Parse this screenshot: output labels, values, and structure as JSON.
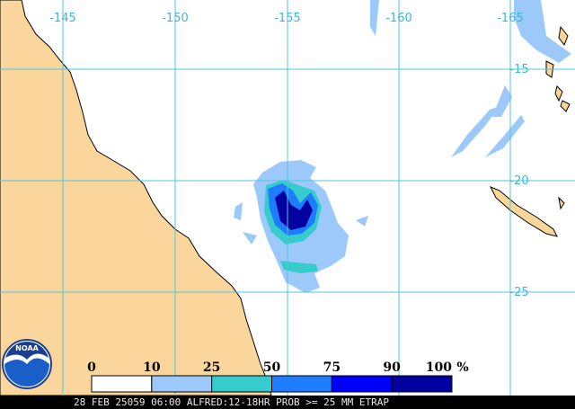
{
  "map": {
    "longitude_labels": [
      "-145",
      "-150",
      "-155",
      "-160",
      "-165"
    ],
    "latitude_labels": [
      "-15",
      "-20",
      "-25"
    ],
    "logo": "NOAA",
    "legend": {
      "labels": [
        "0",
        "10",
        "25",
        "50",
        "75",
        "90",
        "100"
      ],
      "unit": "%",
      "colors": [
        "#ffffff",
        "#9cc8fa",
        "#36cccc",
        "#1e7cff",
        "#0000fa",
        "#0000a0"
      ]
    },
    "footer": "28 FEB 25059 06:00 ALFRED:12-18HR PROB >= 25 MM ETRAP"
  }
}
